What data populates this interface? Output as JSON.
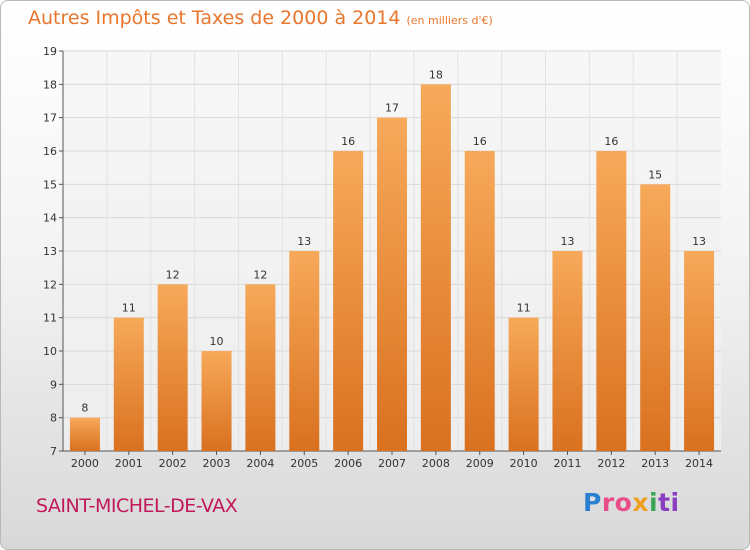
{
  "title": {
    "main": "Autres Impôts et Taxes de 2000 à 2014",
    "unit": "(en milliers d'€)"
  },
  "commune": "SAINT-MICHEL-DE-VAX",
  "logo": {
    "parts": [
      "P",
      "ro",
      "x",
      "i",
      "ti"
    ]
  },
  "colors": {
    "title": "#e8762c",
    "commune": "#c2185b",
    "bar_top": "#f7a95a",
    "bar_bottom": "#d9711f",
    "grid": "#d8d8d8"
  },
  "chart_data": {
    "type": "bar",
    "categories": [
      "2000",
      "2001",
      "2002",
      "2003",
      "2004",
      "2005",
      "2006",
      "2007",
      "2008",
      "2009",
      "2010",
      "2011",
      "2012",
      "2013",
      "2014"
    ],
    "values": [
      8,
      11,
      12,
      10,
      12,
      13,
      16,
      17,
      18,
      16,
      11,
      13,
      16,
      15,
      13
    ],
    "ylim": [
      7,
      19
    ],
    "yticks": [
      7,
      8,
      9,
      10,
      11,
      12,
      13,
      14,
      15,
      16,
      17,
      18,
      19
    ],
    "grid": true,
    "data_labels": true
  }
}
